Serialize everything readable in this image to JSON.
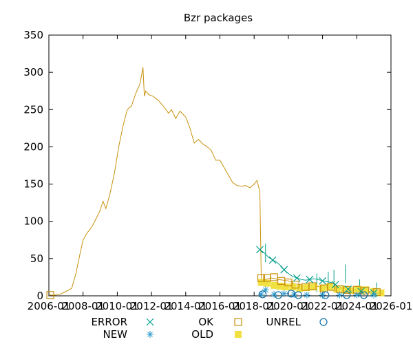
{
  "colors": {
    "ok": "#c8900c",
    "error": "#009e8a",
    "new": "#3a9fcf",
    "unrel": "#0a6fa8",
    "old": "#f0e040",
    "axis": "#000000"
  },
  "chart_data": {
    "type": "line",
    "title": "Bzr packages",
    "xlabel": "",
    "ylabel": "",
    "ylim": [
      0,
      350
    ],
    "xlim": [
      "2006-01",
      "2026-01"
    ],
    "y_ticks": [
      "0",
      "50",
      "100",
      "150",
      "200",
      "250",
      "300",
      "350"
    ],
    "x_ticks": [
      "2006-01",
      "2008-01",
      "2010-01",
      "2012-01",
      "2014-01",
      "2016-01",
      "2018-01",
      "2020-01",
      "2022-01",
      "2024-01",
      "2026-01"
    ],
    "legend": {
      "placement": "bottom",
      "entries": [
        {
          "key": "error",
          "label": "ERROR",
          "marker": "x"
        },
        {
          "key": "ok",
          "label": "OK",
          "marker": "open-square"
        },
        {
          "key": "unrel",
          "label": "UNREL",
          "marker": "open-circle"
        },
        {
          "key": "new",
          "label": "NEW",
          "marker": "star"
        },
        {
          "key": "old",
          "label": "OLD",
          "marker": "filled-square"
        }
      ]
    },
    "series": [
      {
        "key": "ok",
        "name": "OK",
        "points": [
          [
            "2006-01-01",
            1
          ],
          [
            "2006-06-01",
            1
          ],
          [
            "2006-10-01",
            3
          ],
          [
            "2007-01-01",
            6
          ],
          [
            "2007-05-01",
            10
          ],
          [
            "2007-08-01",
            30
          ],
          [
            "2007-11-01",
            58
          ],
          [
            "2008-01-01",
            75
          ],
          [
            "2008-04-01",
            85
          ],
          [
            "2008-07-01",
            92
          ],
          [
            "2008-10-01",
            103
          ],
          [
            "2009-01-01",
            115
          ],
          [
            "2009-03-01",
            127
          ],
          [
            "2009-05-01",
            117
          ],
          [
            "2009-08-01",
            138
          ],
          [
            "2009-11-01",
            165
          ],
          [
            "2010-02-01",
            200
          ],
          [
            "2010-05-01",
            228
          ],
          [
            "2010-08-01",
            250
          ],
          [
            "2010-11-01",
            255
          ],
          [
            "2011-02-01",
            272
          ],
          [
            "2011-05-01",
            285
          ],
          [
            "2011-07-01",
            307
          ],
          [
            "2011-08-01",
            268
          ],
          [
            "2011-09-01",
            275
          ],
          [
            "2011-11-01",
            270
          ],
          [
            "2012-02-01",
            268
          ],
          [
            "2012-06-01",
            262
          ],
          [
            "2012-10-01",
            253
          ],
          [
            "2013-01-01",
            245
          ],
          [
            "2013-03-01",
            250
          ],
          [
            "2013-06-01",
            238
          ],
          [
            "2013-09-01",
            248
          ],
          [
            "2014-01-01",
            240
          ],
          [
            "2014-04-01",
            225
          ],
          [
            "2014-07-01",
            205
          ],
          [
            "2014-10-01",
            210
          ],
          [
            "2015-01-01",
            204
          ],
          [
            "2015-04-01",
            200
          ],
          [
            "2015-07-01",
            195
          ],
          [
            "2015-10-01",
            182
          ],
          [
            "2016-01-01",
            182
          ],
          [
            "2016-04-01",
            172
          ],
          [
            "2016-07-01",
            162
          ],
          [
            "2016-10-01",
            152
          ],
          [
            "2017-01-01",
            148
          ],
          [
            "2017-04-01",
            147
          ],
          [
            "2017-07-01",
            148
          ],
          [
            "2017-10-01",
            145
          ],
          [
            "2018-01-01",
            150
          ],
          [
            "2018-03-01",
            155
          ],
          [
            "2018-05-01",
            140
          ],
          [
            "2018-06-01",
            20
          ],
          [
            "2018-09-01",
            22
          ],
          [
            "2019-01-01",
            24
          ],
          [
            "2019-06-01",
            22
          ],
          [
            "2020-01-01",
            20
          ],
          [
            "2020-06-01",
            16
          ],
          [
            "2021-01-01",
            14
          ],
          [
            "2021-06-01",
            13
          ],
          [
            "2022-01-01",
            12
          ],
          [
            "2022-06-01",
            11
          ],
          [
            "2023-01-01",
            10
          ],
          [
            "2023-06-01",
            9
          ],
          [
            "2024-01-01",
            8
          ],
          [
            "2024-06-01",
            7
          ],
          [
            "2025-01-01",
            5
          ],
          [
            "2025-06-01",
            4
          ]
        ]
      },
      {
        "key": "error",
        "name": "ERROR",
        "points": [
          [
            "2018-05-01",
            62
          ],
          [
            "2018-08-01",
            58
          ],
          [
            "2018-11-01",
            52
          ],
          [
            "2019-02-01",
            48
          ],
          [
            "2019-05-01",
            45
          ],
          [
            "2019-08-01",
            40
          ],
          [
            "2019-10-01",
            35
          ],
          [
            "2020-01-01",
            30
          ],
          [
            "2020-04-01",
            26
          ],
          [
            "2020-07-01",
            24
          ],
          [
            "2020-10-01",
            22
          ],
          [
            "2021-01-01",
            21
          ],
          [
            "2021-04-01",
            22
          ],
          [
            "2021-07-01",
            23
          ],
          [
            "2021-10-01",
            22
          ],
          [
            "2022-01-01",
            20
          ],
          [
            "2022-04-01",
            19
          ],
          [
            "2022-07-01",
            18
          ],
          [
            "2022-10-01",
            15
          ],
          [
            "2023-01-01",
            12
          ],
          [
            "2023-04-01",
            10
          ],
          [
            "2023-07-01",
            9
          ],
          [
            "2023-10-01",
            8
          ],
          [
            "2024-01-01",
            7
          ],
          [
            "2024-04-01",
            6
          ],
          [
            "2024-07-01",
            5
          ],
          [
            "2024-10-01",
            4
          ],
          [
            "2025-01-01",
            4
          ],
          [
            "2025-04-01",
            3
          ],
          [
            "2025-08-01",
            3
          ]
        ],
        "spikes": [
          [
            "2018-09-01",
            70
          ],
          [
            "2021-09-01",
            30
          ],
          [
            "2022-05-01",
            32
          ],
          [
            "2022-09-01",
            35
          ],
          [
            "2023-05-01",
            42
          ],
          [
            "2024-03-01",
            22
          ],
          [
            "2025-03-01",
            18
          ]
        ]
      },
      {
        "key": "new",
        "name": "NEW",
        "points": [
          [
            "2018-06-01",
            2
          ],
          [
            "2018-09-01",
            8
          ],
          [
            "2019-03-01",
            2
          ],
          [
            "2019-10-01",
            3
          ],
          [
            "2020-05-01",
            2
          ],
          [
            "2021-02-01",
            1
          ],
          [
            "2022-01-01",
            1
          ],
          [
            "2023-01-01",
            1
          ],
          [
            "2024-01-01",
            1
          ],
          [
            "2025-01-01",
            1
          ]
        ]
      },
      {
        "key": "unrel",
        "name": "UNREL",
        "points": [
          [
            "2018-07-01",
            2
          ],
          [
            "2019-06-01",
            1
          ],
          [
            "2020-03-01",
            3
          ],
          [
            "2020-08-01",
            1
          ],
          [
            "2022-03-01",
            1
          ],
          [
            "2023-06-01",
            1
          ],
          [
            "2024-06-01",
            1
          ]
        ]
      },
      {
        "key": "old",
        "name": "OLD",
        "points": [
          [
            "2018-06-01",
            18
          ],
          [
            "2018-10-01",
            17
          ],
          [
            "2019-03-01",
            14
          ],
          [
            "2019-07-01",
            13
          ],
          [
            "2019-11-01",
            12
          ],
          [
            "2020-04-01",
            12
          ],
          [
            "2020-09-01",
            10
          ],
          [
            "2021-02-01",
            11
          ],
          [
            "2021-07-01",
            12
          ],
          [
            "2022-01-01",
            10
          ],
          [
            "2022-06-01",
            12
          ],
          [
            "2022-11-01",
            9
          ],
          [
            "2023-04-01",
            8
          ],
          [
            "2023-09-01",
            7
          ],
          [
            "2024-02-01",
            9
          ],
          [
            "2024-07-01",
            8
          ],
          [
            "2025-01-01",
            6
          ],
          [
            "2025-06-01",
            4
          ]
        ]
      },
      {
        "key": "ok_markers",
        "name": "OK",
        "points": [
          [
            "2006-02-01",
            1
          ],
          [
            "2018-06-01",
            24
          ],
          [
            "2018-10-01",
            24
          ],
          [
            "2019-03-01",
            25
          ],
          [
            "2019-08-01",
            20
          ],
          [
            "2020-01-01",
            18
          ],
          [
            "2020-06-01",
            15
          ],
          [
            "2021-01-01",
            12
          ],
          [
            "2021-06-01",
            13
          ],
          [
            "2022-02-01",
            10
          ],
          [
            "2022-07-01",
            12
          ],
          [
            "2023-01-01",
            9
          ],
          [
            "2023-06-01",
            8
          ],
          [
            "2024-01-01",
            8
          ],
          [
            "2024-07-01",
            7
          ],
          [
            "2025-03-01",
            5
          ]
        ]
      }
    ]
  }
}
